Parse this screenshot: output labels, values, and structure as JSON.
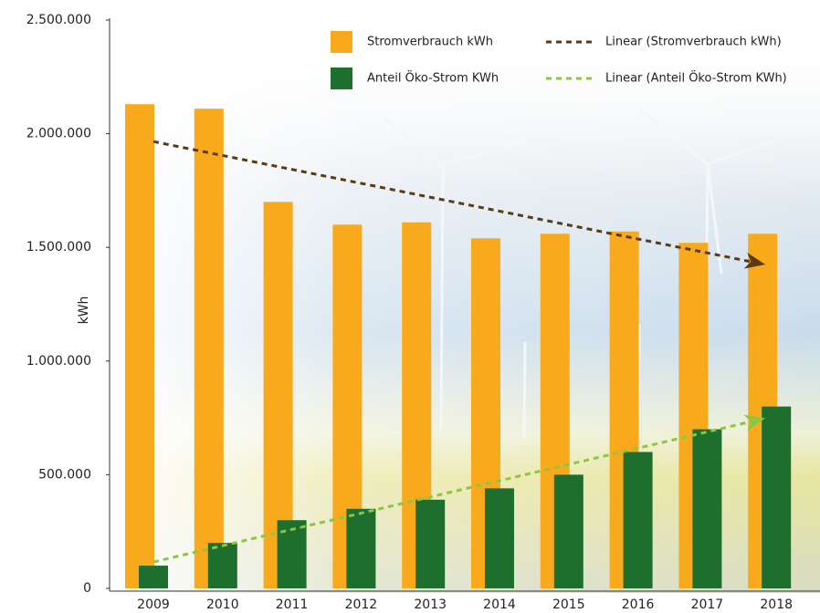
{
  "chart_data": {
    "type": "bar",
    "y_label": "kWh",
    "categories": [
      "2009",
      "2010",
      "2011",
      "2012",
      "2013",
      "2014",
      "2015",
      "2016",
      "2017",
      "2018"
    ],
    "series": [
      {
        "name": "Stromverbrauch kWh",
        "color": "#f9aa1c",
        "values": [
          2130000,
          2110000,
          1700000,
          1600000,
          1610000,
          1540000,
          1560000,
          1570000,
          1520000,
          1560000
        ],
        "trendline": {
          "name": "Linear (Stromverbrauch kWh)",
          "color": "#5a3a12"
        }
      },
      {
        "name": "Anteil Öko-Strom KWh",
        "color": "#1e6e2e",
        "values": [
          100000,
          200000,
          300000,
          350000,
          390000,
          440000,
          500000,
          600000,
          700000,
          800000
        ],
        "trendline": {
          "name": "Linear (Anteil Öko-Strom KWh)",
          "color": "#8dc63f"
        }
      }
    ],
    "ylim": [
      0,
      2500000
    ],
    "yticks": [
      0,
      {
        "value": 500000,
        "label": "500.000"
      },
      {
        "value": 1000000,
        "label": "1.000.000"
      },
      {
        "value": 1500000,
        "label": "1.500.000"
      },
      {
        "value": 2000000,
        "label": "2.000.000"
      },
      {
        "value": 2500000,
        "label": "2.500.000"
      }
    ]
  }
}
